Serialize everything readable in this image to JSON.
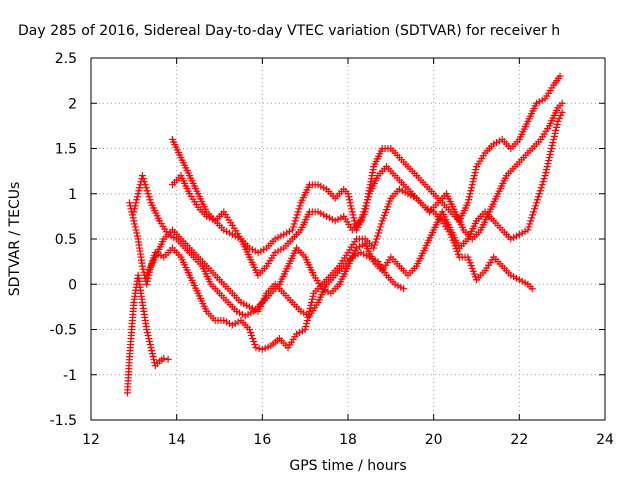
{
  "chart_data": {
    "type": "scatter",
    "title": "Day 285 of 2016, Sidereal Day-to-day VTEC variation (SDTVAR) for receiver h",
    "xlabel": "GPS time / hours",
    "ylabel": "SDTVAR / TECUs",
    "xlim": [
      12,
      24
    ],
    "ylim": [
      -1.5,
      2.5
    ],
    "x_ticks": [
      12,
      14,
      16,
      18,
      20,
      22,
      24
    ],
    "x_tick_labels": [
      "12",
      "14",
      "16",
      "18",
      "20",
      "22",
      "24"
    ],
    "y_ticks": [
      -1.5,
      -1,
      -0.5,
      0,
      0.5,
      1,
      1.5,
      2,
      2.5
    ],
    "y_tick_labels": [
      "-1.5",
      "-1",
      "-0.5",
      "0",
      "0.5",
      "1",
      "1.5",
      "2",
      "2.5"
    ],
    "grid": true,
    "marker": "+",
    "color": "#ff0000",
    "series": [
      {
        "points": [
          [
            12.85,
            -1.2
          ],
          [
            12.9,
            -0.8
          ],
          [
            12.95,
            -0.5
          ],
          [
            13.0,
            -0.2
          ],
          [
            13.1,
            0.1
          ],
          [
            13.2,
            -0.2
          ],
          [
            13.3,
            -0.5
          ],
          [
            13.4,
            -0.7
          ],
          [
            13.5,
            -0.9
          ],
          [
            13.6,
            -0.85
          ],
          [
            13.7,
            -0.82
          ],
          [
            13.8,
            -0.83
          ]
        ]
      },
      {
        "points": [
          [
            12.9,
            0.9
          ],
          [
            13.0,
            0.7
          ],
          [
            13.1,
            0.5
          ],
          [
            13.2,
            0.2
          ],
          [
            13.3,
            0.0
          ],
          [
            13.4,
            0.2
          ],
          [
            13.5,
            0.35
          ],
          [
            13.7,
            0.3
          ],
          [
            13.9,
            0.4
          ],
          [
            14.1,
            0.3
          ],
          [
            14.3,
            0.1
          ],
          [
            14.5,
            -0.1
          ],
          [
            14.7,
            -0.3
          ],
          [
            14.9,
            -0.4
          ],
          [
            15.1,
            -0.4
          ],
          [
            15.3,
            -0.45
          ],
          [
            15.5,
            -0.4
          ],
          [
            15.7,
            -0.5
          ],
          [
            15.85,
            -0.7
          ],
          [
            16.0,
            -0.72
          ],
          [
            16.2,
            -0.68
          ],
          [
            16.4,
            -0.6
          ],
          [
            16.6,
            -0.7
          ],
          [
            16.8,
            -0.55
          ],
          [
            17.0,
            -0.5
          ],
          [
            17.2,
            -0.1
          ],
          [
            17.4,
            0.0
          ],
          [
            17.6,
            0.1
          ],
          [
            17.8,
            0.2
          ],
          [
            18.0,
            0.35
          ],
          [
            18.2,
            0.5
          ],
          [
            18.4,
            0.5
          ],
          [
            18.6,
            0.4
          ],
          [
            18.8,
            0.7
          ],
          [
            19.0,
            0.95
          ],
          [
            19.2,
            1.05
          ],
          [
            19.4,
            1.0
          ],
          [
            19.6,
            0.95
          ],
          [
            19.8,
            0.85
          ],
          [
            20.0,
            0.8
          ],
          [
            20.2,
            0.7
          ],
          [
            20.4,
            0.55
          ],
          [
            20.6,
            0.3
          ],
          [
            20.8,
            0.3
          ],
          [
            21.0,
            0.05
          ],
          [
            21.2,
            0.15
          ],
          [
            21.4,
            0.3
          ],
          [
            21.6,
            0.2
          ],
          [
            21.8,
            0.1
          ],
          [
            22.0,
            0.05
          ],
          [
            22.2,
            0.0
          ],
          [
            22.3,
            -0.05
          ]
        ]
      },
      {
        "points": [
          [
            13.0,
            0.8
          ],
          [
            13.2,
            1.2
          ],
          [
            13.4,
            0.9
          ],
          [
            13.6,
            0.7
          ],
          [
            13.8,
            0.55
          ],
          [
            14.0,
            0.5
          ],
          [
            14.2,
            0.4
          ],
          [
            14.4,
            0.3
          ],
          [
            14.6,
            0.2
          ],
          [
            14.8,
            0.0
          ],
          [
            15.0,
            -0.1
          ],
          [
            15.2,
            -0.2
          ],
          [
            15.4,
            -0.3
          ],
          [
            15.6,
            -0.35
          ],
          [
            15.8,
            -0.3
          ],
          [
            16.0,
            -0.2
          ],
          [
            16.2,
            -0.1
          ],
          [
            16.4,
            0.0
          ],
          [
            16.6,
            0.2
          ],
          [
            16.8,
            0.4
          ],
          [
            17.0,
            0.3
          ],
          [
            17.2,
            0.1
          ],
          [
            17.4,
            -0.05
          ],
          [
            17.6,
            -0.1
          ],
          [
            17.8,
            0.0
          ],
          [
            18.0,
            0.2
          ],
          [
            18.2,
            0.4
          ],
          [
            18.4,
            0.45
          ],
          [
            18.6,
            0.25
          ],
          [
            18.8,
            0.15
          ],
          [
            19.0,
            0.3
          ],
          [
            19.2,
            0.2
          ],
          [
            19.4,
            0.1
          ],
          [
            19.6,
            0.2
          ],
          [
            19.8,
            0.4
          ],
          [
            20.0,
            0.6
          ],
          [
            20.2,
            0.8
          ],
          [
            20.4,
            0.6
          ],
          [
            20.6,
            0.4
          ],
          [
            20.8,
            0.5
          ],
          [
            21.0,
            0.7
          ],
          [
            21.2,
            0.8
          ],
          [
            21.4,
            0.7
          ],
          [
            21.6,
            0.6
          ],
          [
            21.8,
            0.5
          ],
          [
            22.0,
            0.55
          ],
          [
            22.2,
            0.6
          ],
          [
            22.4,
            0.9
          ],
          [
            22.6,
            1.2
          ],
          [
            22.8,
            1.6
          ],
          [
            22.9,
            1.8
          ],
          [
            23.0,
            1.9
          ]
        ]
      },
      {
        "points": [
          [
            13.9,
            1.6
          ],
          [
            14.1,
            1.4
          ],
          [
            14.3,
            1.2
          ],
          [
            14.5,
            1.0
          ],
          [
            14.7,
            0.8
          ],
          [
            14.9,
            0.7
          ],
          [
            15.1,
            0.6
          ],
          [
            15.3,
            0.55
          ],
          [
            15.5,
            0.5
          ],
          [
            15.7,
            0.4
          ],
          [
            15.9,
            0.35
          ],
          [
            16.1,
            0.4
          ],
          [
            16.3,
            0.5
          ],
          [
            16.5,
            0.55
          ],
          [
            16.7,
            0.6
          ],
          [
            16.9,
            0.9
          ],
          [
            17.1,
            1.1
          ],
          [
            17.3,
            1.1
          ],
          [
            17.5,
            1.05
          ],
          [
            17.7,
            0.95
          ],
          [
            17.9,
            1.05
          ],
          [
            18.0,
            1.0
          ],
          [
            18.2,
            0.6
          ],
          [
            18.4,
            0.8
          ],
          [
            18.6,
            1.3
          ],
          [
            18.8,
            1.5
          ],
          [
            19.0,
            1.5
          ],
          [
            19.2,
            1.4
          ],
          [
            19.4,
            1.3
          ],
          [
            19.6,
            1.2
          ],
          [
            19.8,
            1.1
          ],
          [
            20.0,
            1.0
          ],
          [
            20.2,
            0.9
          ],
          [
            20.4,
            0.8
          ],
          [
            20.6,
            0.7
          ],
          [
            20.8,
            0.9
          ],
          [
            21.0,
            1.3
          ],
          [
            21.2,
            1.45
          ],
          [
            21.4,
            1.55
          ],
          [
            21.6,
            1.6
          ],
          [
            21.8,
            1.5
          ],
          [
            22.0,
            1.6
          ],
          [
            22.2,
            1.8
          ],
          [
            22.4,
            2.0
          ],
          [
            22.6,
            2.05
          ],
          [
            22.8,
            2.2
          ],
          [
            22.95,
            2.3
          ]
        ]
      },
      {
        "points": [
          [
            13.9,
            1.1
          ],
          [
            14.1,
            1.2
          ],
          [
            14.3,
            1.0
          ],
          [
            14.5,
            0.85
          ],
          [
            14.7,
            0.75
          ],
          [
            14.9,
            0.7
          ],
          [
            15.1,
            0.8
          ],
          [
            15.3,
            0.65
          ],
          [
            15.5,
            0.5
          ],
          [
            15.7,
            0.3
          ],
          [
            15.9,
            0.1
          ],
          [
            16.1,
            0.2
          ],
          [
            16.3,
            0.35
          ],
          [
            16.5,
            0.4
          ],
          [
            16.7,
            0.5
          ],
          [
            16.9,
            0.6
          ],
          [
            17.1,
            0.8
          ],
          [
            17.3,
            0.8
          ],
          [
            17.5,
            0.75
          ],
          [
            17.7,
            0.7
          ],
          [
            17.9,
            0.75
          ],
          [
            18.1,
            0.6
          ],
          [
            18.3,
            0.7
          ],
          [
            18.5,
            1.0
          ],
          [
            18.7,
            1.2
          ],
          [
            18.9,
            1.3
          ],
          [
            19.1,
            1.2
          ],
          [
            19.3,
            1.1
          ],
          [
            19.5,
            1.0
          ],
          [
            19.7,
            0.9
          ],
          [
            19.9,
            0.8
          ],
          [
            20.1,
            0.9
          ],
          [
            20.3,
            1.0
          ],
          [
            20.5,
            0.8
          ],
          [
            20.7,
            0.6
          ],
          [
            20.9,
            0.5
          ],
          [
            21.1,
            0.6
          ],
          [
            21.3,
            0.8
          ],
          [
            21.5,
            1.0
          ],
          [
            21.7,
            1.2
          ],
          [
            21.9,
            1.3
          ],
          [
            22.1,
            1.4
          ],
          [
            22.3,
            1.5
          ],
          [
            22.5,
            1.6
          ],
          [
            22.7,
            1.75
          ],
          [
            22.9,
            1.95
          ],
          [
            23.0,
            2.0
          ]
        ]
      },
      {
        "points": [
          [
            13.3,
            0.1
          ],
          [
            13.5,
            0.3
          ],
          [
            13.7,
            0.5
          ],
          [
            13.9,
            0.6
          ],
          [
            14.1,
            0.5
          ],
          [
            14.3,
            0.4
          ],
          [
            14.5,
            0.3
          ],
          [
            14.7,
            0.2
          ],
          [
            14.9,
            0.1
          ],
          [
            15.1,
            0.0
          ],
          [
            15.3,
            -0.1
          ],
          [
            15.5,
            -0.2
          ],
          [
            15.7,
            -0.25
          ],
          [
            15.9,
            -0.3
          ],
          [
            16.1,
            -0.1
          ],
          [
            16.3,
            0.0
          ],
          [
            16.5,
            -0.1
          ],
          [
            16.7,
            -0.2
          ],
          [
            16.9,
            -0.3
          ],
          [
            17.1,
            -0.35
          ],
          [
            17.3,
            -0.2
          ],
          [
            17.5,
            0.0
          ],
          [
            17.7,
            0.1
          ],
          [
            17.9,
            0.2
          ],
          [
            18.1,
            0.3
          ],
          [
            18.3,
            0.35
          ],
          [
            18.5,
            0.3
          ],
          [
            18.7,
            0.25
          ],
          [
            18.9,
            0.1
          ],
          [
            19.1,
            0.0
          ],
          [
            19.3,
            -0.05
          ]
        ]
      }
    ]
  }
}
